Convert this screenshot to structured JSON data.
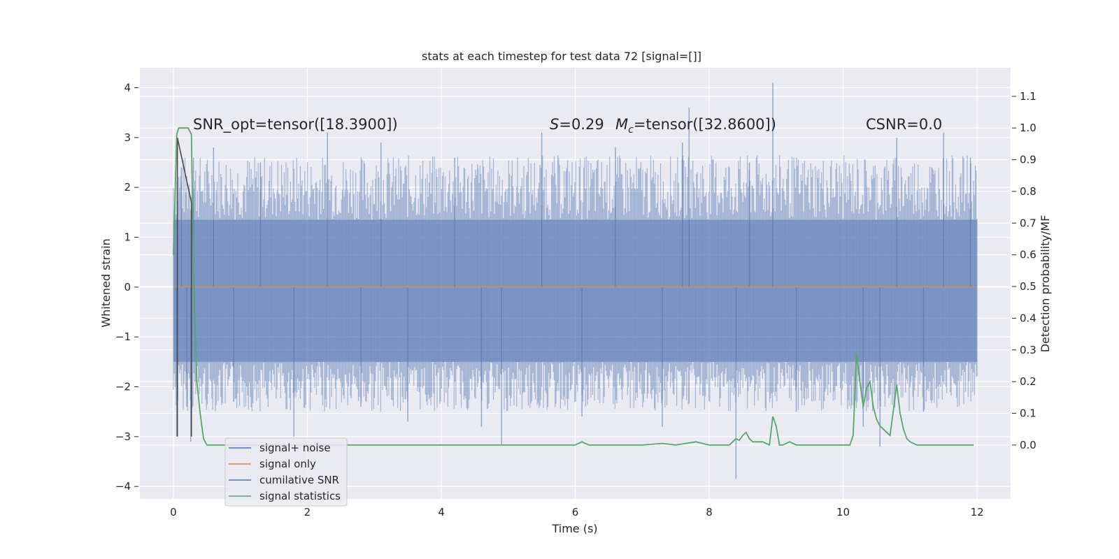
{
  "chart_data": {
    "type": "line",
    "title": "stats at each timestep for test data 72 [signal=[]]",
    "xlabel": "Time (s)",
    "ylabel": "Whitened strain",
    "y2label": "Detection probability/MF",
    "xlim": [
      -0.5,
      12.5
    ],
    "ylim": [
      -4.25,
      4.4
    ],
    "y2lim": [
      -0.17,
      1.19
    ],
    "xticks": [
      0,
      2,
      4,
      6,
      8,
      10,
      12
    ],
    "yticks": [
      4,
      3,
      2,
      1,
      0,
      -1,
      -2,
      -3,
      -4
    ],
    "y2ticks": [
      1.1,
      1.0,
      0.9,
      0.8,
      0.7,
      0.6,
      0.5,
      0.4,
      0.3,
      0.2,
      0.1,
      0.0
    ],
    "grid": true,
    "legend_position": "bottom-left",
    "annotations": {
      "snr_opt": "SNR_opt=tensor([18.3900])",
      "s_symbol": "S",
      "s_value": "=0.29",
      "mc_symbol": "M",
      "mc_subscript": "c",
      "mc_value": "=tensor([32.8600])",
      "csnr": "CSNR=0.0"
    },
    "series": [
      {
        "name": "signal+ noise",
        "color": "#4c72b0",
        "axis": "left",
        "x_range": [
          0,
          12
        ],
        "band": [
          -1.5,
          1.35
        ],
        "spikes": [
          [
            0.05,
            -3.0
          ],
          [
            0.12,
            2.4
          ],
          [
            0.2,
            -2.4
          ],
          [
            0.26,
            -3.1
          ],
          [
            0.3,
            2.6
          ],
          [
            0.6,
            2.8
          ],
          [
            0.9,
            -2.3
          ],
          [
            1.3,
            2.5
          ],
          [
            1.8,
            -3.0
          ],
          [
            2.3,
            3.1
          ],
          [
            2.8,
            -2.4
          ],
          [
            3.1,
            2.9
          ],
          [
            3.5,
            -2.7
          ],
          [
            4.2,
            2.6
          ],
          [
            4.6,
            -2.8
          ],
          [
            4.9,
            -3.15
          ],
          [
            5.5,
            3.1
          ],
          [
            6.1,
            -2.6
          ],
          [
            6.6,
            2.8
          ],
          [
            7.3,
            -2.8
          ],
          [
            7.6,
            2.9
          ],
          [
            7.7,
            3.6
          ],
          [
            8.4,
            -3.85
          ],
          [
            8.6,
            2.5
          ],
          [
            8.95,
            4.1
          ],
          [
            9.3,
            -2.5
          ],
          [
            10.3,
            -2.8
          ],
          [
            10.55,
            -3.2
          ],
          [
            10.8,
            3.0
          ],
          [
            11.2,
            -2.5
          ],
          [
            11.5,
            3.1
          ],
          [
            11.9,
            2.6
          ]
        ]
      },
      {
        "name": "signal only",
        "color": "#dd8452",
        "axis": "left",
        "x": [
          0,
          12
        ],
        "values": [
          0,
          0
        ]
      },
      {
        "name": "cumilative SNR",
        "color": "#4c72b0",
        "axis": "left",
        "x": [
          0.06,
          0.06,
          0.27,
          0.27
        ],
        "values": [
          -3.0,
          3.0,
          1.7,
          -3.0
        ]
      },
      {
        "name": "signal statistics",
        "color": "#55a868",
        "axis": "right",
        "x": [
          0.0,
          0.05,
          0.08,
          0.15,
          0.22,
          0.27,
          0.3,
          0.35,
          0.4,
          0.45,
          0.5,
          0.6,
          0.8,
          1.0,
          1.5,
          2.0,
          3.0,
          4.0,
          4.5,
          5.0,
          5.5,
          6.0,
          6.1,
          6.2,
          6.5,
          7.0,
          7.3,
          7.5,
          7.8,
          8.0,
          8.3,
          8.4,
          8.45,
          8.5,
          8.55,
          8.6,
          8.65,
          8.7,
          8.8,
          8.9,
          8.95,
          9.0,
          9.05,
          9.1,
          9.2,
          9.3,
          9.5,
          9.8,
          10.0,
          10.1,
          10.15,
          10.2,
          10.25,
          10.3,
          10.35,
          10.4,
          10.45,
          10.5,
          10.55,
          10.6,
          10.65,
          10.7,
          10.8,
          10.85,
          10.9,
          10.95,
          11.0,
          11.1,
          11.2,
          11.5,
          11.8,
          11.95
        ],
        "values": [
          0.6,
          0.98,
          1.0,
          1.0,
          1.0,
          0.98,
          0.55,
          0.2,
          0.1,
          0.02,
          0.0,
          0.0,
          0.0,
          0.0,
          0.0,
          0.0,
          0.0,
          0.0,
          0.0,
          0.0,
          0.0,
          0.0,
          0.01,
          0.0,
          0.0,
          0.0,
          0.005,
          0.0,
          0.01,
          0.0,
          0.0,
          0.02,
          0.015,
          0.03,
          0.04,
          0.02,
          0.01,
          0.01,
          0.01,
          0.0,
          0.09,
          0.06,
          0.0,
          0.0,
          0.01,
          0.0,
          0.0,
          0.0,
          0.0,
          0.0,
          0.03,
          0.29,
          0.2,
          0.12,
          0.18,
          0.2,
          0.12,
          0.08,
          0.06,
          0.05,
          0.04,
          0.03,
          0.19,
          0.1,
          0.05,
          0.02,
          0.01,
          0.0,
          0.0,
          0.0,
          0.0,
          0.0
        ]
      }
    ]
  }
}
